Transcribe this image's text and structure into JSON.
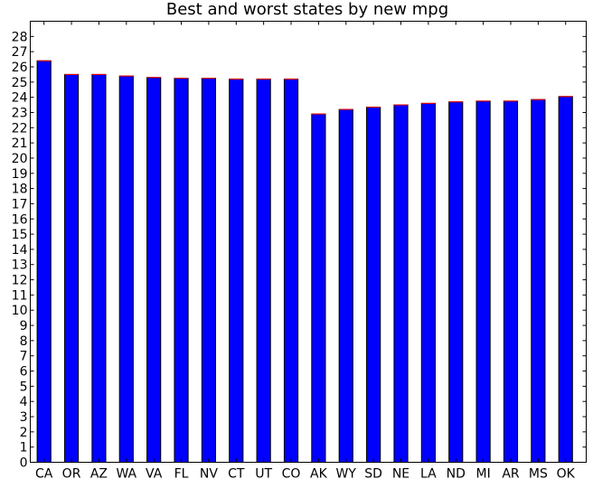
{
  "chart_data": {
    "type": "bar",
    "title": "Best and worst states by new mpg",
    "xlabel": "",
    "ylabel": "",
    "categories": [
      "CA",
      "OR",
      "AZ",
      "WA",
      "VA",
      "FL",
      "NV",
      "CT",
      "UT",
      "CO",
      "AK",
      "WY",
      "SD",
      "NE",
      "LA",
      "ND",
      "MI",
      "AR",
      "MS",
      "OK"
    ],
    "values": [
      26.4,
      25.5,
      25.5,
      25.4,
      25.3,
      25.25,
      25.25,
      25.2,
      25.2,
      25.2,
      22.9,
      23.2,
      23.35,
      23.5,
      23.6,
      23.7,
      23.75,
      23.75,
      23.85,
      24.05
    ],
    "ylim": [
      0,
      29
    ],
    "yticks": [
      0,
      1,
      2,
      3,
      4,
      5,
      6,
      7,
      8,
      9,
      10,
      11,
      12,
      13,
      14,
      15,
      16,
      17,
      18,
      19,
      20,
      21,
      22,
      23,
      24,
      25,
      26,
      27,
      28
    ],
    "grid": false,
    "bar_color": "#0000ff",
    "bar_top_color": "#ff0000"
  }
}
